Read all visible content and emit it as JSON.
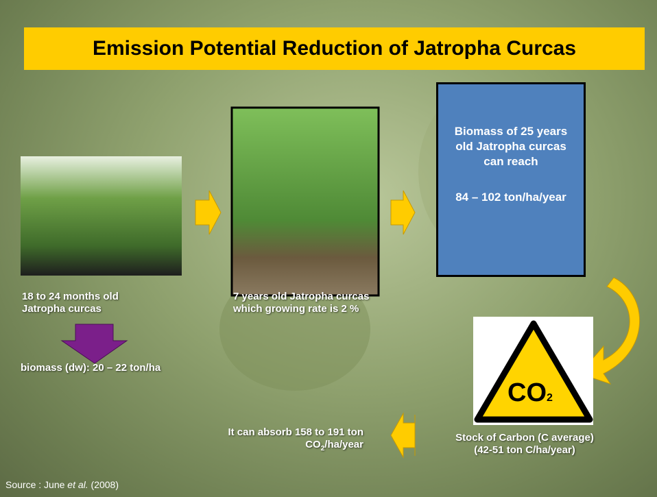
{
  "title": "Emission Potential Reduction of Jatropha Curcas",
  "stage1": {
    "caption": [
      "18 to 24 months old",
      "Jatropha curcas"
    ],
    "biomass": "biomass (dw): 20 – 22 ton/ha"
  },
  "stage2": {
    "caption": [
      "7 years old Jatropha curcas",
      "which growing rate is 2 %"
    ]
  },
  "stage3": {
    "lines": [
      "Biomass of 25 years",
      "old Jatropha curcas",
      "can reach"
    ],
    "amount": "84 – 102 ton/ha/year"
  },
  "carbon": {
    "icon": {
      "main": "CO",
      "sub": "2"
    },
    "caption": [
      "Stock of Carbon (C average)",
      "(42-51 ton C/ha/year)"
    ]
  },
  "absorb": {
    "line1": "It can absorb 158 to 191 ton",
    "line2": {
      "main": "CO",
      "sub": "2",
      "rest": "/ha/year"
    }
  },
  "source": {
    "text": "Source : June ",
    "italic": "et al.",
    "year": " (2008)"
  }
}
